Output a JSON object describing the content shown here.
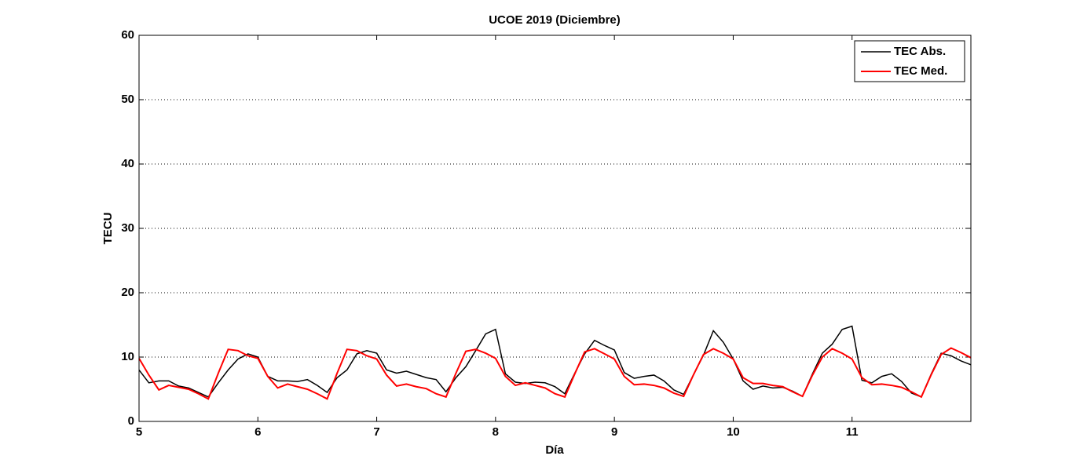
{
  "chart_data": {
    "type": "line",
    "title": "UCOE 2019 (Diciembre)",
    "xlabel": "Día",
    "ylabel": "TECU",
    "x": [
      5,
      5.083,
      5.167,
      5.25,
      5.333,
      5.417,
      5.5,
      5.583,
      5.667,
      5.75,
      5.833,
      5.917,
      6,
      6.083,
      6.167,
      6.25,
      6.333,
      6.417,
      6.5,
      6.583,
      6.667,
      6.75,
      6.833,
      6.917,
      7,
      7.083,
      7.167,
      7.25,
      7.333,
      7.417,
      7.5,
      7.583,
      7.667,
      7.75,
      7.833,
      7.917,
      8,
      8.083,
      8.167,
      8.25,
      8.333,
      8.417,
      8.5,
      8.583,
      8.667,
      8.75,
      8.833,
      8.917,
      9,
      9.083,
      9.167,
      9.25,
      9.333,
      9.417,
      9.5,
      9.583,
      9.667,
      9.75,
      9.833,
      9.917,
      10,
      10.083,
      10.167,
      10.25,
      10.333,
      10.417,
      10.5,
      10.583,
      10.667,
      10.75,
      10.833,
      10.917,
      11,
      11.083,
      11.167,
      11.25,
      11.333,
      11.417,
      11.5,
      11.583,
      11.667,
      11.75,
      11.833,
      11.917,
      12
    ],
    "series": [
      {
        "name": "TEC Abs.",
        "color": "#000000",
        "values": [
          8,
          6,
          6.3,
          6.3,
          5.5,
          5.2,
          4.5,
          3.8,
          6,
          8,
          9.7,
          10.5,
          10,
          7,
          6.3,
          6.3,
          6.2,
          6.5,
          5.6,
          4.5,
          6.8,
          8,
          10.5,
          11,
          10.6,
          8,
          7.5,
          7.8,
          7.3,
          6.8,
          6.5,
          4.6,
          6.8,
          8.5,
          11,
          13.6,
          14.3,
          7.4,
          6.1,
          5.9,
          6.1,
          6,
          5.4,
          4.3,
          7.5,
          10.5,
          12.6,
          11.8,
          11.1,
          7.6,
          6.7,
          7,
          7.2,
          6.3,
          4.9,
          4.2,
          7.3,
          10.3,
          14.1,
          12.3,
          9.7,
          6.3,
          5,
          5.5,
          5.2,
          5.3,
          4.7,
          3.9,
          7.4,
          10.6,
          12,
          14.3,
          14.8,
          6.4,
          6,
          7,
          7.4,
          6.2,
          4.4,
          3.8,
          7.4,
          10.6,
          10.2,
          9.4,
          8.8
        ]
      },
      {
        "name": "TEC Med.",
        "color": "#ff0000",
        "values": [
          9.8,
          7.2,
          4.9,
          5.6,
          5.3,
          5,
          4.3,
          3.5,
          7.5,
          11.2,
          11,
          10.2,
          9.8,
          7,
          5.2,
          5.8,
          5.4,
          5,
          4.3,
          3.5,
          7.5,
          11.2,
          11,
          10.2,
          9.7,
          7.2,
          5.5,
          5.8,
          5.4,
          5.1,
          4.3,
          3.8,
          7.5,
          10.9,
          11.2,
          10.6,
          9.8,
          7,
          5.6,
          6,
          5.6,
          5.2,
          4.3,
          3.8,
          7.4,
          10.8,
          11.3,
          10.5,
          9.7,
          7,
          5.7,
          5.8,
          5.6,
          5.2,
          4.4,
          3.9,
          7.3,
          10.4,
          11.3,
          10.6,
          9.7,
          6.8,
          5.9,
          5.9,
          5.6,
          5.4,
          4.6,
          3.9,
          7.2,
          10,
          11.3,
          10.6,
          9.7,
          6.8,
          5.7,
          5.8,
          5.6,
          5.3,
          4.6,
          3.8,
          7.3,
          10.4,
          11.4,
          10.7,
          9.9
        ]
      }
    ],
    "xlim": [
      5,
      12
    ],
    "xticks": [
      5,
      6,
      7,
      8,
      9,
      10,
      11
    ],
    "ylim": [
      0,
      60
    ],
    "yticks": [
      0,
      10,
      20,
      30,
      40,
      50,
      60
    ],
    "grid": "y",
    "legend": "northeast"
  }
}
